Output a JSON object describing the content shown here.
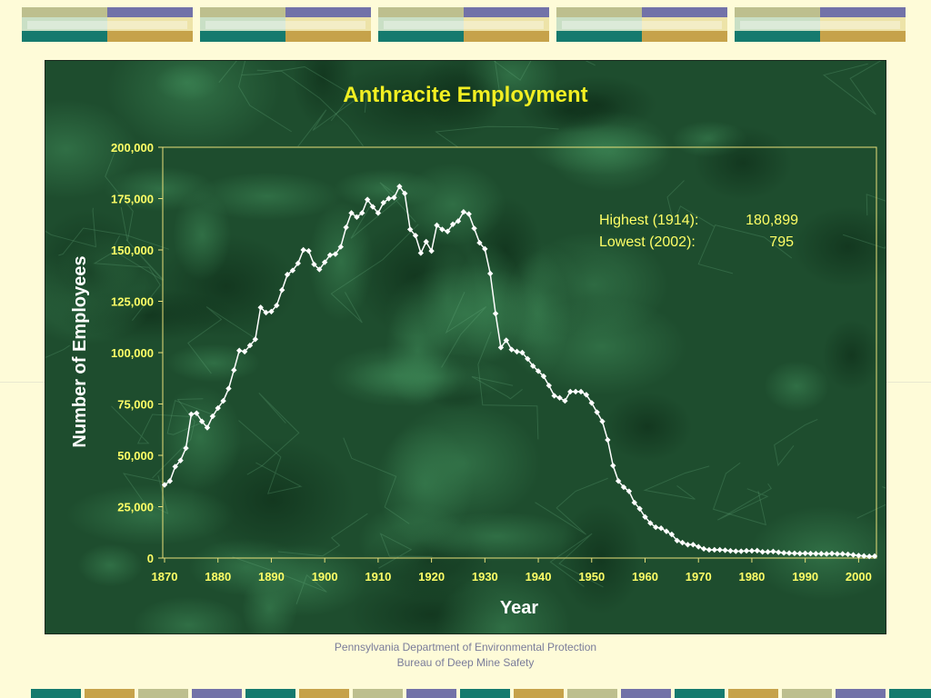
{
  "footer": {
    "line1": "Pennsylvania Department of Environmental Protection",
    "line2": "Bureau of Deep Mine Safety"
  },
  "colors": {
    "background": "#fefbd8",
    "panel": "#1e4d2e",
    "title": "#f2ef22",
    "axis_text": "#ffff66",
    "line": "#ffffff",
    "annotation": "#ffff66",
    "banner_teal": "#157a6e",
    "banner_olive": "#bdbf8e",
    "banner_purple": "#7272a8",
    "banner_gold": "#c6a24a"
  },
  "chart_data": {
    "type": "line",
    "title": "Anthracite Employment",
    "xlabel": "Year",
    "ylabel": "Number of Employees",
    "xlim": [
      1870,
      2003
    ],
    "ylim": [
      0,
      200000
    ],
    "x_ticks": [
      "1870",
      "1880",
      "1890",
      "1900",
      "1910",
      "1920",
      "1930",
      "1940",
      "1950",
      "1960",
      "1970",
      "1980",
      "1990",
      "2000"
    ],
    "y_ticks": [
      "0",
      "25,000",
      "50,000",
      "75,000",
      "100,000",
      "125,000",
      "150,000",
      "175,000",
      "200,000"
    ],
    "grid": false,
    "annotations": [
      {
        "label": "Highest (1914):",
        "value": "180,899"
      },
      {
        "label": "Lowest (2002):",
        "value": "795"
      }
    ],
    "series": [
      {
        "marker": "diamond",
        "x": [
          1870,
          1871,
          1872,
          1873,
          1874,
          1875,
          1876,
          1877,
          1878,
          1879,
          1880,
          1881,
          1882,
          1883,
          1884,
          1885,
          1886,
          1887,
          1888,
          1889,
          1890,
          1891,
          1892,
          1893,
          1894,
          1895,
          1896,
          1897,
          1898,
          1899,
          1900,
          1901,
          1902,
          1903,
          1904,
          1905,
          1906,
          1907,
          1908,
          1909,
          1910,
          1911,
          1912,
          1913,
          1914,
          1915,
          1916,
          1917,
          1918,
          1919,
          1920,
          1921,
          1922,
          1923,
          1924,
          1925,
          1926,
          1927,
          1928,
          1929,
          1930,
          1931,
          1932,
          1933,
          1934,
          1935,
          1936,
          1937,
          1938,
          1939,
          1940,
          1941,
          1942,
          1943,
          1944,
          1945,
          1946,
          1947,
          1948,
          1949,
          1950,
          1951,
          1952,
          1953,
          1954,
          1955,
          1956,
          1957,
          1958,
          1959,
          1960,
          1961,
          1962,
          1963,
          1964,
          1965,
          1966,
          1967,
          1968,
          1969,
          1970,
          1971,
          1972,
          1973,
          1974,
          1975,
          1976,
          1977,
          1978,
          1979,
          1980,
          1981,
          1982,
          1983,
          1984,
          1985,
          1986,
          1987,
          1988,
          1989,
          1990,
          1991,
          1992,
          1993,
          1994,
          1995,
          1996,
          1997,
          1998,
          1999,
          2000,
          2001,
          2002,
          2003
        ],
        "values": [
          35600,
          37500,
          44500,
          47500,
          53500,
          70000,
          70500,
          66500,
          63500,
          69000,
          73000,
          76500,
          82500,
          91500,
          101000,
          100500,
          103500,
          106500,
          122000,
          119500,
          120000,
          123000,
          130500,
          138000,
          140000,
          143500,
          150000,
          149500,
          143000,
          140500,
          144000,
          147500,
          148000,
          151500,
          161000,
          168000,
          166000,
          168000,
          174500,
          171000,
          168000,
          173000,
          175000,
          175500,
          180899,
          177500,
          160000,
          157000,
          148500,
          154000,
          149500,
          162000,
          160000,
          159000,
          162500,
          164000,
          168500,
          167500,
          160500,
          153500,
          150500,
          138500,
          119000,
          102500,
          106000,
          101500,
          100500,
          100000,
          97000,
          93500,
          91000,
          88500,
          84000,
          79000,
          78000,
          76500,
          81000,
          81000,
          81000,
          79500,
          75500,
          71000,
          66500,
          57500,
          45000,
          37500,
          34500,
          32500,
          27000,
          24000,
          20000,
          17000,
          15000,
          14500,
          13000,
          11500,
          8500,
          7500,
          6500,
          6500,
          5500,
          4500,
          4000,
          4000,
          4000,
          3800,
          3500,
          3300,
          3300,
          3500,
          3500,
          3600,
          3000,
          3000,
          3200,
          2800,
          2500,
          2400,
          2300,
          2200,
          2300,
          2200,
          2100,
          2100,
          2000,
          2200,
          2000,
          2000,
          1800,
          1500,
          1200,
          1000,
          795,
          900
        ]
      }
    ]
  }
}
